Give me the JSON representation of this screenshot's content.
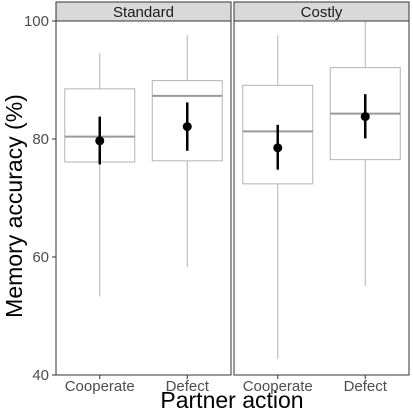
{
  "chart_data": {
    "type": "box",
    "xlabel": "Partner action",
    "ylabel": "Memory accuracy (%)",
    "ylim": [
      40,
      100
    ],
    "yticks": [
      40,
      60,
      80,
      100
    ],
    "grid": false,
    "panels": [
      {
        "name": "Standard",
        "categories": [
          "Cooperate",
          "Defect"
        ],
        "boxes": [
          {
            "category": "Cooperate",
            "whisker_low": 53.3,
            "q1": 76.1,
            "median": 80.4,
            "q3": 88.5,
            "whisker_high": 94.5,
            "mean": 79.7,
            "ci_low": 75.7,
            "ci_high": 83.8
          },
          {
            "category": "Defect",
            "whisker_low": 58.3,
            "q1": 76.3,
            "median": 87.3,
            "q3": 89.9,
            "whisker_high": 97.6,
            "mean": 82.1,
            "ci_low": 78.0,
            "ci_high": 86.2
          }
        ]
      },
      {
        "name": "Costly",
        "categories": [
          "Cooperate",
          "Defect"
        ],
        "boxes": [
          {
            "category": "Cooperate",
            "whisker_low": 42.7,
            "q1": 72.4,
            "median": 81.3,
            "q3": 89.1,
            "whisker_high": 97.6,
            "mean": 78.5,
            "ci_low": 74.8,
            "ci_high": 82.4
          },
          {
            "category": "Defect",
            "whisker_low": 55.1,
            "q1": 76.5,
            "median": 84.3,
            "q3": 92.1,
            "whisker_high": 99.9,
            "mean": 83.8,
            "ci_low": 80.1,
            "ci_high": 87.6
          }
        ]
      }
    ]
  }
}
